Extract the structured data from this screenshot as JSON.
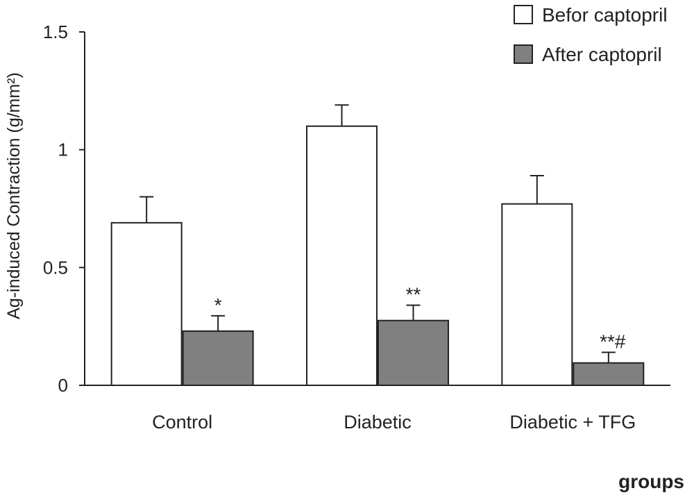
{
  "chart_data": {
    "type": "bar",
    "title": "",
    "xlabel": "groups",
    "ylabel": "Ag-induced Contraction (g/mm²)",
    "categories": [
      "Control",
      "Diabetic",
      "Diabetic + TFG"
    ],
    "series": [
      {
        "name": "Befor captopril",
        "color": "#ffffff",
        "values": [
          0.69,
          1.1,
          0.77
        ],
        "errors": [
          0.11,
          0.09,
          0.12
        ],
        "annotations": [
          "",
          "",
          ""
        ]
      },
      {
        "name": "After captopril",
        "color": "#808080",
        "values": [
          0.23,
          0.275,
          0.095
        ],
        "errors": [
          0.065,
          0.065,
          0.045
        ],
        "annotations": [
          "*",
          "**",
          "**#"
        ]
      }
    ],
    "ylim": [
      0,
      1.5
    ],
    "yticks": [
      0,
      0.5,
      1,
      1.5
    ],
    "ytick_labels": [
      "0",
      "0.5",
      "1",
      "1.5"
    ],
    "grid": false,
    "legend_position": "top-right"
  }
}
